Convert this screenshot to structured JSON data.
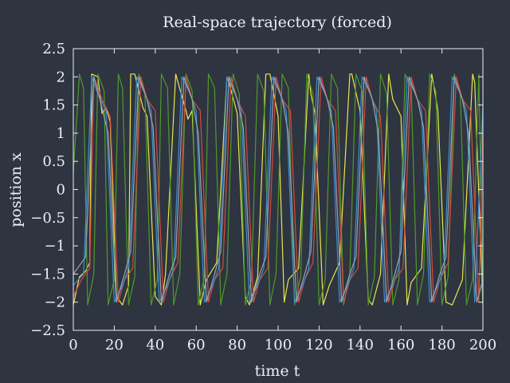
{
  "chart_data": {
    "type": "line",
    "title": "Real-space trajectory (forced)",
    "xlabel": "time t",
    "ylabel": "position x",
    "xlim": [
      0,
      200
    ],
    "ylim": [
      -2.5,
      2.5
    ],
    "xticks": [
      0,
      20,
      40,
      60,
      80,
      100,
      120,
      140,
      160,
      180,
      200
    ],
    "yticks": [
      -2.5,
      -2,
      -1.5,
      -1,
      -0.5,
      0,
      0.5,
      1,
      1.5,
      2,
      2.5
    ],
    "xtick_labels": [
      "0",
      "20",
      "40",
      "60",
      "80",
      "100",
      "120",
      "140",
      "160",
      "180",
      "200"
    ],
    "ytick_labels": [
      "−2.5",
      "−2",
      "−1.5",
      "−1",
      "−0.5",
      "0",
      "0.5",
      "1",
      "1.5",
      "2",
      "2.5"
    ],
    "grid": false,
    "legend": "none",
    "colors": {
      "background": "#2e3440",
      "axes": "#eceff4",
      "text": "#eceff4"
    },
    "series": [
      {
        "color": "#e8e84a",
        "x": [
          0,
          3,
          6,
          8,
          9,
          12,
          13,
          14,
          16,
          18,
          21,
          24,
          27,
          28,
          30,
          34,
          36,
          40,
          43,
          45,
          50,
          55,
          56,
          58,
          62,
          65,
          70,
          75,
          76,
          80,
          84,
          86,
          90,
          94,
          96,
          100,
          103,
          105,
          110,
          115,
          116,
          118,
          122,
          125,
          130,
          135,
          136,
          140,
          144,
          146,
          150,
          154,
          156,
          160,
          163,
          165,
          170,
          175,
          176,
          178,
          182,
          185,
          190,
          195,
          196,
          200
        ],
        "y": [
          -2.05,
          -1.55,
          -1.45,
          -1.3,
          2.05,
          2.0,
          1.7,
          1.35,
          1.45,
          1.2,
          -1.9,
          -2.05,
          -1.7,
          2.05,
          2.05,
          1.45,
          1.3,
          -1.9,
          -2.05,
          -1.5,
          2.05,
          1.4,
          1.25,
          1.4,
          -2.05,
          -1.6,
          -1.3,
          2.0,
          1.9,
          1.35,
          -1.9,
          -2.05,
          -1.55,
          2.05,
          2.05,
          1.3,
          -2.0,
          -1.6,
          -1.4,
          2.05,
          1.7,
          1.35,
          -2.05,
          -1.7,
          -1.3,
          2.05,
          2.05,
          1.4,
          -1.95,
          -2.05,
          -1.5,
          2.05,
          1.6,
          1.3,
          -2.05,
          -1.65,
          -1.4,
          2.05,
          1.85,
          1.4,
          -2.0,
          -2.05,
          -1.6,
          2.05,
          1.9,
          -2.05
        ]
      },
      {
        "color": "#4f9a2a",
        "x": [
          0,
          3,
          5,
          7,
          10,
          12,
          15,
          17,
          20,
          22,
          24,
          27,
          30,
          32,
          35,
          38,
          41,
          43,
          46,
          49,
          52,
          55,
          58,
          61,
          64,
          66,
          69,
          72,
          75,
          78,
          81,
          84,
          87,
          90,
          93,
          96,
          99,
          102,
          105,
          108,
          111,
          114,
          117,
          120,
          123,
          126,
          129,
          132,
          135,
          138,
          141,
          144,
          147,
          150,
          153,
          156,
          159,
          162,
          165,
          168,
          171,
          174,
          177,
          180,
          183,
          186,
          189,
          192,
          195,
          198,
          200
        ],
        "y": [
          0.3,
          2.05,
          1.8,
          -2.05,
          -1.5,
          2.05,
          1.75,
          -2.05,
          -1.6,
          2.05,
          1.8,
          -2.05,
          -1.55,
          2.05,
          1.7,
          -2.05,
          -1.6,
          2.05,
          1.8,
          -2.05,
          -1.5,
          2.05,
          1.75,
          -2.05,
          -1.55,
          2.05,
          1.8,
          -2.05,
          -1.5,
          2.05,
          1.7,
          -2.05,
          -1.6,
          2.05,
          1.75,
          -2.05,
          -1.5,
          2.05,
          1.8,
          -2.05,
          -1.55,
          2.05,
          1.7,
          -2.05,
          -1.6,
          2.05,
          1.8,
          -2.05,
          -1.5,
          2.05,
          1.75,
          -2.05,
          -1.55,
          2.05,
          1.7,
          -2.05,
          -1.6,
          2.05,
          1.8,
          -2.05,
          -1.5,
          2.05,
          1.75,
          -2.05,
          -1.55,
          2.05,
          1.7,
          -2.05,
          -1.6,
          2.05,
          -2.05
        ]
      },
      {
        "color": "#d94a3a",
        "x": [
          0,
          4,
          8,
          10,
          14,
          18,
          22,
          25,
          29,
          33,
          36,
          40,
          44,
          47,
          51,
          55,
          58,
          62,
          66,
          69,
          73,
          77,
          80,
          84,
          88,
          91,
          95,
          99,
          102,
          106,
          110,
          113,
          117,
          121,
          124,
          128,
          132,
          135,
          139,
          143,
          146,
          150,
          154,
          157,
          161,
          165,
          168,
          172,
          176,
          179,
          183,
          187,
          190,
          194,
          198,
          200
        ],
        "y": [
          -1.9,
          -1.6,
          -1.4,
          2.0,
          1.6,
          1.3,
          -2.0,
          -1.6,
          -1.4,
          2.0,
          1.6,
          1.4,
          -2.0,
          -1.6,
          -1.3,
          2.0,
          1.6,
          1.4,
          -2.0,
          -1.6,
          -1.4,
          2.0,
          1.6,
          1.3,
          -2.0,
          -1.6,
          -1.4,
          2.0,
          1.6,
          1.4,
          -2.0,
          -1.6,
          -1.3,
          2.0,
          1.6,
          1.4,
          -2.0,
          -1.6,
          -1.4,
          2.0,
          1.6,
          1.3,
          -2.0,
          -1.6,
          -1.4,
          2.0,
          1.6,
          1.4,
          -2.0,
          -1.6,
          -1.3,
          2.0,
          1.6,
          1.4,
          -2.0,
          1.1
        ]
      },
      {
        "color": "#3b8fd0",
        "x": [
          0,
          5,
          9,
          12,
          16,
          20,
          24,
          27,
          31,
          35,
          38,
          42,
          46,
          49,
          53,
          57,
          60,
          64,
          68,
          71,
          75,
          79,
          82,
          86,
          90,
          93,
          97,
          101,
          104,
          108,
          112,
          115,
          119,
          123,
          126,
          130,
          134,
          137,
          141,
          145,
          148,
          152,
          156,
          159,
          163,
          167,
          170,
          174,
          178,
          181,
          185,
          189,
          192,
          196,
          200
        ],
        "y": [
          -1.7,
          -1.5,
          2.0,
          1.7,
          1.4,
          -2.0,
          -1.7,
          -1.4,
          2.0,
          1.7,
          1.4,
          -2.0,
          -1.7,
          -1.4,
          2.0,
          1.7,
          1.4,
          -2.0,
          -1.7,
          -1.4,
          2.0,
          1.7,
          1.4,
          -2.0,
          -1.7,
          -1.4,
          2.0,
          1.7,
          1.4,
          -2.0,
          -1.7,
          -1.4,
          2.0,
          1.7,
          1.4,
          -2.0,
          -1.7,
          -1.4,
          2.0,
          1.7,
          1.4,
          -2.0,
          -1.7,
          -1.4,
          2.0,
          1.7,
          1.4,
          -2.0,
          -1.7,
          -1.4,
          2.0,
          1.7,
          1.4,
          -2.0,
          1.5
        ]
      },
      {
        "color": "#9aa3b0",
        "x": [
          0,
          6,
          10,
          13,
          17,
          21,
          25,
          28,
          32,
          36,
          39,
          43,
          47,
          50,
          54,
          58,
          61,
          65,
          69,
          72,
          76,
          80,
          83,
          87,
          91,
          94,
          98,
          102,
          105,
          109,
          113,
          116,
          120,
          124,
          127,
          131,
          135,
          138,
          142,
          146,
          149,
          153,
          157,
          160,
          164,
          168,
          171,
          175,
          179,
          182,
          186,
          190,
          193,
          197,
          200
        ],
        "y": [
          -1.5,
          -1.2,
          2.0,
          1.6,
          1.0,
          -2.0,
          -1.5,
          -1.1,
          2.0,
          1.6,
          1.1,
          -2.0,
          -1.5,
          -1.2,
          2.0,
          1.6,
          1.0,
          -2.0,
          -1.5,
          -1.1,
          2.0,
          1.6,
          1.1,
          -2.0,
          -1.5,
          -1.2,
          2.0,
          1.6,
          1.0,
          -2.0,
          -1.5,
          -1.1,
          2.0,
          1.6,
          1.1,
          -2.0,
          -1.5,
          -1.2,
          2.0,
          1.6,
          1.0,
          -2.0,
          -1.5,
          -1.1,
          2.0,
          1.6,
          1.1,
          -2.0,
          -1.5,
          -1.2,
          2.0,
          1.6,
          1.0,
          -2.0,
          -1.6
        ]
      }
    ]
  }
}
